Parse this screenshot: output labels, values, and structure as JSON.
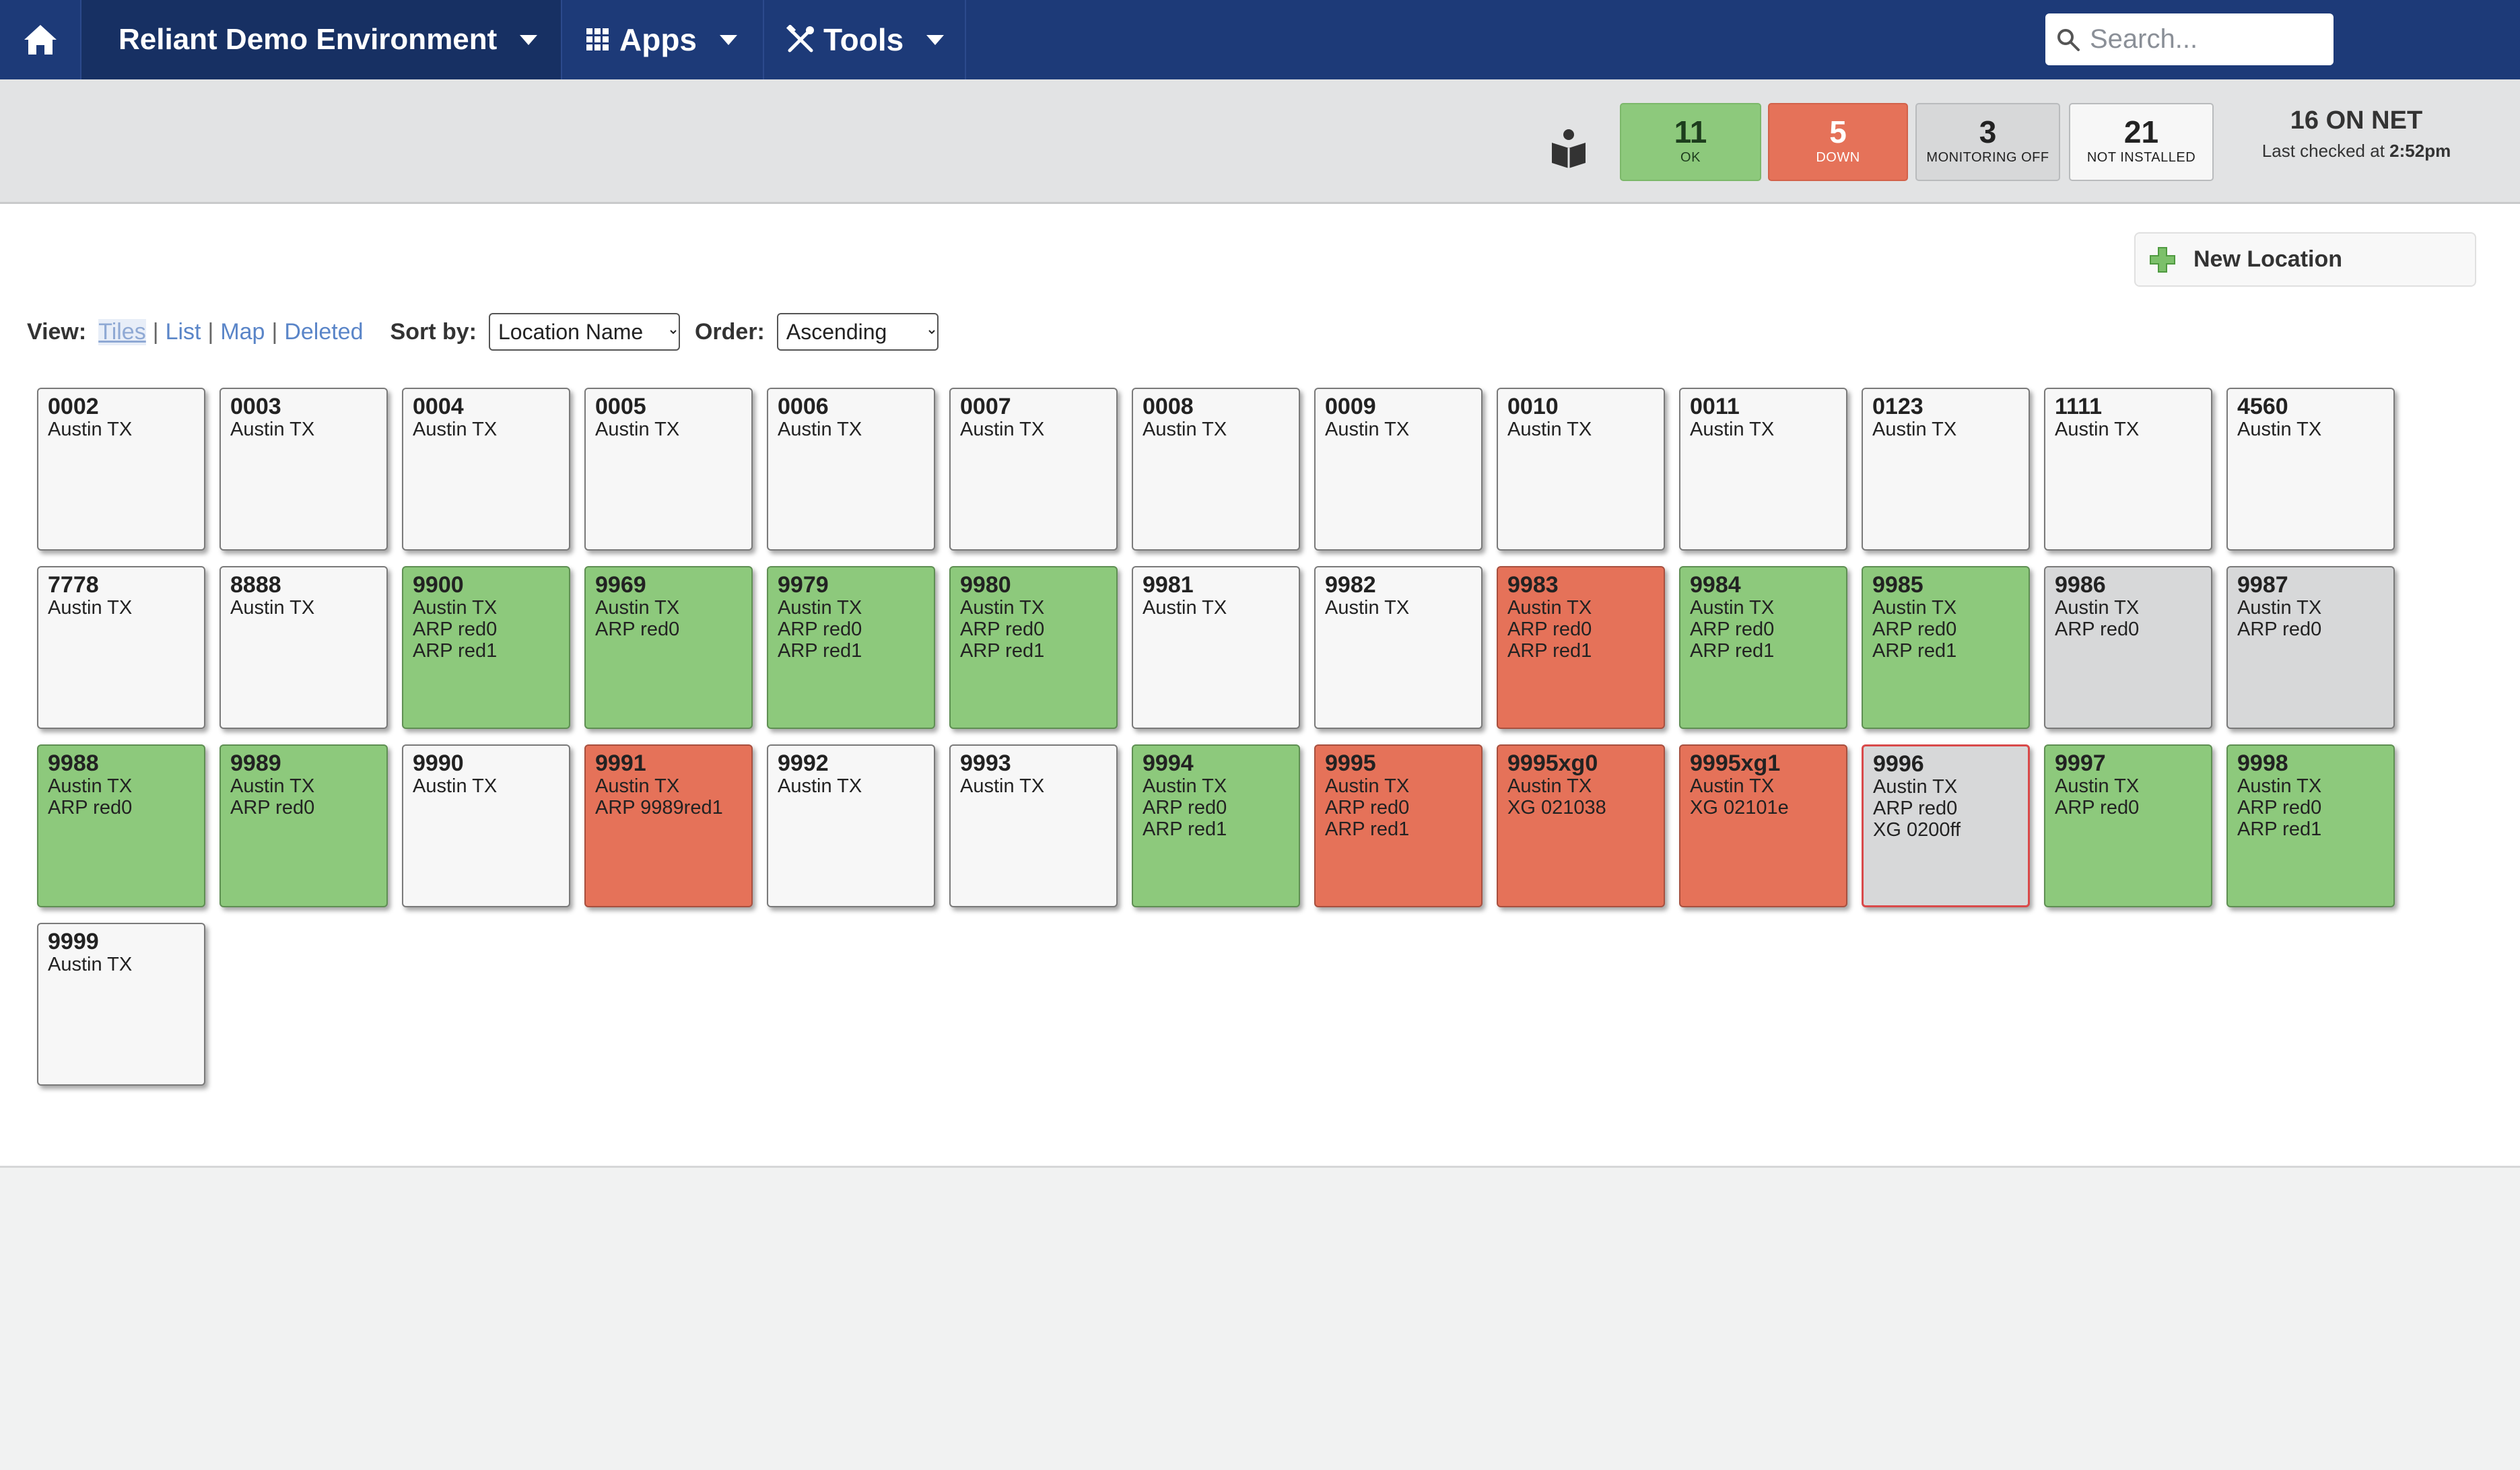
{
  "nav": {
    "environment": "Reliant Demo Environment",
    "apps": "Apps",
    "tools": "Tools",
    "search_placeholder": "Search..."
  },
  "status": {
    "ok_count": "11",
    "ok_label": "OK",
    "down_count": "5",
    "down_label": "DOWN",
    "off_count": "3",
    "off_label": "MONITORING OFF",
    "ni_count": "21",
    "ni_label": "NOT INSTALLED",
    "on_net": "16 ON NET",
    "last_checked_prefix": "Last checked at",
    "last_checked_time": "2:52pm"
  },
  "content": {
    "new_location": "New Location",
    "view_label": "View:",
    "views": [
      "Tiles",
      "List",
      "Map",
      "Deleted"
    ],
    "sort_label": "Sort by:",
    "sort_value": "Location Name",
    "order_label": "Order:",
    "order_value": "Ascending"
  },
  "colors": {
    "navbar": "#1d3a78",
    "ok": "#8dc97c",
    "down": "#e57259",
    "monitoring_off": "#d7d8d9",
    "not_installed": "#f7f7f7"
  },
  "tiles": [
    {
      "name": "0002",
      "lines": [
        "Austin TX"
      ],
      "status": "white"
    },
    {
      "name": "0003",
      "lines": [
        "Austin TX"
      ],
      "status": "white"
    },
    {
      "name": "0004",
      "lines": [
        "Austin TX"
      ],
      "status": "white"
    },
    {
      "name": "0005",
      "lines": [
        "Austin TX"
      ],
      "status": "white"
    },
    {
      "name": "0006",
      "lines": [
        "Austin TX"
      ],
      "status": "white"
    },
    {
      "name": "0007",
      "lines": [
        "Austin TX"
      ],
      "status": "white"
    },
    {
      "name": "0008",
      "lines": [
        "Austin TX"
      ],
      "status": "white"
    },
    {
      "name": "0009",
      "lines": [
        "Austin TX"
      ],
      "status": "white"
    },
    {
      "name": "0010",
      "lines": [
        "Austin TX"
      ],
      "status": "white"
    },
    {
      "name": "0011",
      "lines": [
        "Austin TX"
      ],
      "status": "white"
    },
    {
      "name": "0123",
      "lines": [
        "Austin TX"
      ],
      "status": "white"
    },
    {
      "name": "1111",
      "lines": [
        "Austin TX"
      ],
      "status": "white"
    },
    {
      "name": "4560",
      "lines": [
        "Austin TX"
      ],
      "status": "white"
    },
    {
      "name": "7778",
      "lines": [
        "Austin TX"
      ],
      "status": "white"
    },
    {
      "name": "8888",
      "lines": [
        "Austin TX"
      ],
      "status": "white"
    },
    {
      "name": "9900",
      "lines": [
        "Austin TX",
        "ARP red0",
        "ARP red1"
      ],
      "status": "green"
    },
    {
      "name": "9969",
      "lines": [
        "Austin TX",
        "ARP red0"
      ],
      "status": "green"
    },
    {
      "name": "9979",
      "lines": [
        "Austin TX",
        "ARP red0",
        "ARP red1"
      ],
      "status": "green"
    },
    {
      "name": "9980",
      "lines": [
        "Austin TX",
        "ARP red0",
        "ARP red1"
      ],
      "status": "green"
    },
    {
      "name": "9981",
      "lines": [
        "Austin TX"
      ],
      "status": "white"
    },
    {
      "name": "9982",
      "lines": [
        "Austin TX"
      ],
      "status": "white"
    },
    {
      "name": "9983",
      "lines": [
        "Austin TX",
        "ARP red0",
        "ARP red1"
      ],
      "status": "red"
    },
    {
      "name": "9984",
      "lines": [
        "Austin TX",
        "ARP red0",
        "ARP red1"
      ],
      "status": "green"
    },
    {
      "name": "9985",
      "lines": [
        "Austin TX",
        "ARP red0",
        "ARP red1"
      ],
      "status": "green"
    },
    {
      "name": "9986",
      "lines": [
        "Austin TX",
        "ARP red0"
      ],
      "status": "gray"
    },
    {
      "name": "9987",
      "lines": [
        "Austin TX",
        "ARP red0"
      ],
      "status": "gray"
    },
    {
      "name": "9988",
      "lines": [
        "Austin TX",
        "ARP red0"
      ],
      "status": "green"
    },
    {
      "name": "9989",
      "lines": [
        "Austin TX",
        "ARP red0"
      ],
      "status": "green"
    },
    {
      "name": "9990",
      "lines": [
        "Austin TX"
      ],
      "status": "white"
    },
    {
      "name": "9991",
      "lines": [
        "Austin TX",
        "ARP 9989red1"
      ],
      "status": "red"
    },
    {
      "name": "9992",
      "lines": [
        "Austin TX"
      ],
      "status": "white"
    },
    {
      "name": "9993",
      "lines": [
        "Austin TX"
      ],
      "status": "white"
    },
    {
      "name": "9994",
      "lines": [
        "Austin TX",
        "ARP red0",
        "ARP red1"
      ],
      "status": "green"
    },
    {
      "name": "9995",
      "lines": [
        "Austin TX",
        "ARP red0",
        "ARP red1"
      ],
      "status": "red"
    },
    {
      "name": "9995xg0",
      "lines": [
        "Austin TX",
        "XG 021038"
      ],
      "status": "red"
    },
    {
      "name": "9995xg1",
      "lines": [
        "Austin TX",
        "XG 02101e"
      ],
      "status": "red"
    },
    {
      "name": "9996",
      "lines": [
        "Austin TX",
        "ARP red0",
        "XG 0200ff"
      ],
      "status": "gray alert"
    },
    {
      "name": "9997",
      "lines": [
        "Austin TX",
        "ARP red0"
      ],
      "status": "green"
    },
    {
      "name": "9998",
      "lines": [
        "Austin TX",
        "ARP red0",
        "ARP red1"
      ],
      "status": "green"
    },
    {
      "name": "9999",
      "lines": [
        "Austin TX"
      ],
      "status": "white"
    }
  ]
}
